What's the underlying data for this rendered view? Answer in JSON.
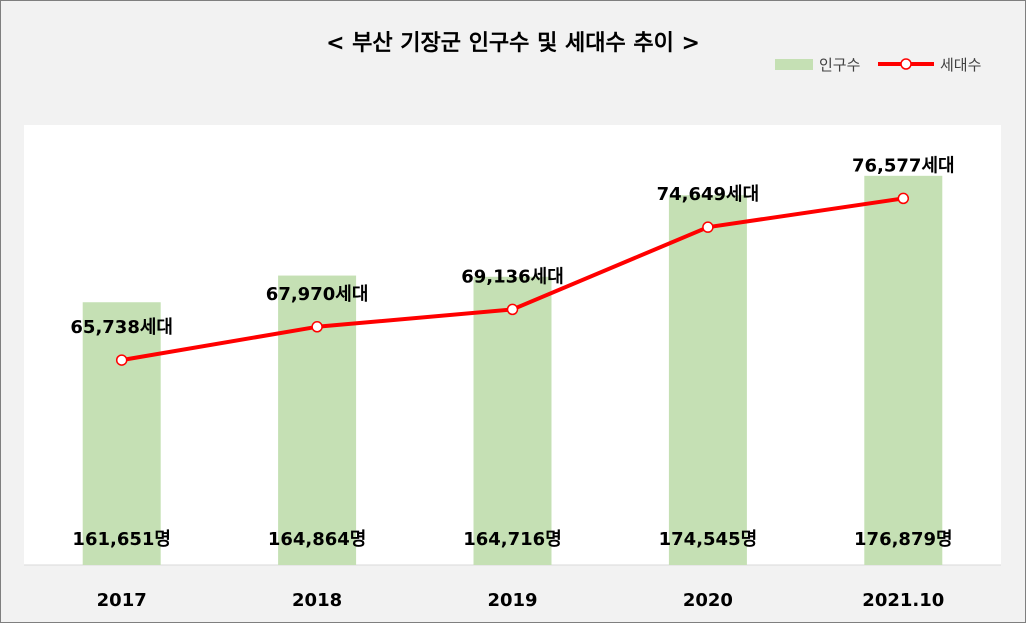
{
  "chart_data": {
    "type": "bar",
    "title": "< 부산 기장군 인구수 및 세대수 추이 >",
    "categories": [
      "2017",
      "2018",
      "2019",
      "2020",
      "2021.10"
    ],
    "series": [
      {
        "name": "인구수",
        "type": "bar",
        "values": [
          161651,
          164864,
          164716,
          174545,
          176879
        ],
        "labels": [
          "161,651명",
          "164,864명",
          "164,716명",
          "174,545명",
          "176,879명"
        ],
        "color": "#c5e0b4"
      },
      {
        "name": "세대수",
        "type": "line",
        "values": [
          65738,
          67970,
          69136,
          74649,
          76577
        ],
        "labels": [
          "65,738세대",
          "67,970세대",
          "69,136세대",
          "74,649세대",
          "76,577세대"
        ],
        "color": "#ff0000"
      }
    ],
    "legend_position": "top-right",
    "grid": false
  }
}
